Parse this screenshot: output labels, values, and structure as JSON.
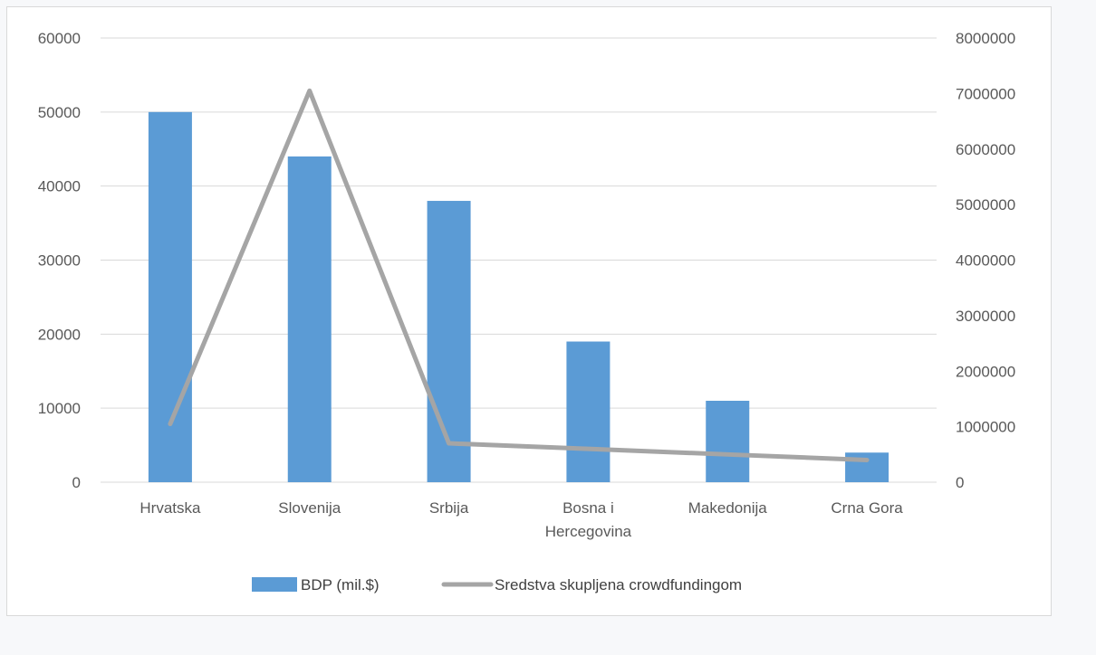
{
  "chart_data": {
    "type": "bar",
    "categories": [
      [
        "Hrvatska"
      ],
      [
        "Slovenija"
      ],
      [
        "Srbija"
      ],
      [
        "Bosna i",
        "Hercegovina"
      ],
      [
        "Makedonija"
      ],
      [
        "Crna Gora"
      ]
    ],
    "series": [
      {
        "name": "BDP (mil.$)",
        "kind": "bar",
        "axis": "left",
        "color": "#5b9bd5",
        "values": [
          50000,
          44000,
          38000,
          19000,
          11000,
          4000
        ]
      },
      {
        "name": "Sredstva skupljena crowdfundingom",
        "kind": "line",
        "axis": "right",
        "color": "#a5a5a5",
        "values": [
          1050000,
          7050000,
          700000,
          600000,
          500000,
          400000
        ]
      }
    ],
    "y_left": {
      "min": 0,
      "max": 60000,
      "ticks": [
        "0",
        "10000",
        "20000",
        "30000",
        "40000",
        "50000",
        "60000"
      ]
    },
    "y_right": {
      "min": 0,
      "max": 8000000,
      "ticks": [
        "0",
        "1000000",
        "2000000",
        "3000000",
        "4000000",
        "5000000",
        "6000000",
        "7000000",
        "8000000"
      ]
    },
    "grid": true,
    "legend_position": "bottom"
  }
}
